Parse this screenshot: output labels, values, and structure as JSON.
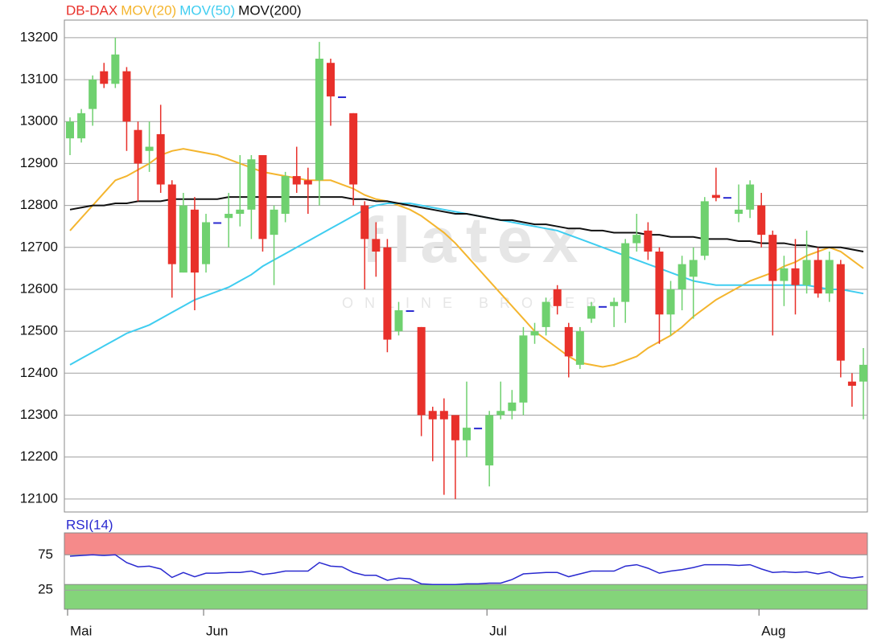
{
  "chart_data": {
    "type": "candlestick",
    "title": "DB-DAX",
    "title_color": "#e8302a",
    "watermark": "flatex",
    "watermark_sub": "ONLINE BROKER",
    "categories": [
      "Mai",
      null,
      null,
      null,
      null,
      null,
      null,
      null,
      null,
      null,
      null,
      null,
      "Jun",
      null,
      null,
      null,
      null,
      null,
      null,
      null,
      null,
      null,
      null,
      null,
      null,
      null,
      null,
      null,
      null,
      null,
      null,
      null,
      null,
      null,
      null,
      null,
      null,
      "Jul",
      null,
      null,
      null,
      null,
      null,
      null,
      null,
      null,
      null,
      null,
      null,
      null,
      null,
      null,
      null,
      null,
      null,
      null,
      null,
      null,
      null,
      null,
      null,
      "Aug",
      null,
      null,
      null,
      null,
      null,
      null,
      null,
      null,
      null
    ],
    "open": [
      12960,
      12960,
      13030,
      13120,
      13090,
      13120,
      12980,
      12930,
      12970,
      12850,
      12640,
      12790,
      12660,
      12760,
      12770,
      12780,
      12790,
      12920,
      12730,
      12780,
      12870,
      12860,
      12860,
      13140,
      13060,
      13020,
      12800,
      12720,
      12700,
      12500,
      12550,
      12510,
      12310,
      12310,
      12300,
      12240,
      12270,
      12180,
      12300,
      12310,
      12330,
      12490,
      12510,
      12600,
      12510,
      12420,
      12530,
      12560,
      12560,
      12570,
      12710,
      12740,
      12690,
      12540,
      12600,
      12630,
      12680,
      12825,
      12820,
      12780,
      12790,
      12800,
      12730,
      12620,
      12650,
      12610,
      12670,
      12590,
      12660,
      12380,
      12380
    ],
    "high": [
      13010,
      13030,
      13110,
      13140,
      13200,
      13130,
      13000,
      13000,
      13040,
      12860,
      12830,
      12820,
      12780,
      12760,
      12830,
      12920,
      12920,
      12920,
      12800,
      12880,
      12940,
      12890,
      13190,
      13150,
      13060,
      13020,
      12810,
      12760,
      12720,
      12570,
      12550,
      12510,
      12320,
      12340,
      12300,
      12380,
      12270,
      12310,
      12380,
      12360,
      12510,
      12520,
      12580,
      12610,
      12520,
      12510,
      12570,
      12560,
      12580,
      12720,
      12780,
      12760,
      12700,
      12620,
      12680,
      12700,
      12820,
      12890,
      12820,
      12850,
      12860,
      12830,
      12740,
      12680,
      12720,
      12740,
      12700,
      12690,
      12670,
      12400,
      12460
    ],
    "low": [
      12920,
      12950,
      12990,
      13080,
      13080,
      12930,
      12810,
      12880,
      12830,
      12580,
      12640,
      12550,
      12640,
      12760,
      12700,
      12750,
      12720,
      12690,
      12610,
      12760,
      12830,
      12780,
      12800,
      12990,
      13060,
      12800,
      12600,
      12630,
      12450,
      12490,
      12550,
      12250,
      12190,
      12110,
      12100,
      12200,
      12270,
      12130,
      12290,
      12290,
      12300,
      12470,
      12490,
      12540,
      12390,
      12410,
      12520,
      12560,
      12510,
      12520,
      12690,
      12670,
      12470,
      12490,
      12550,
      12530,
      12670,
      12810,
      12820,
      12760,
      12770,
      12700,
      12490,
      12560,
      12540,
      12590,
      12580,
      12570,
      12390,
      12320,
      12290
    ],
    "close": [
      13000,
      13020,
      13100,
      13090,
      13160,
      13000,
      12900,
      12940,
      12850,
      12660,
      12800,
      12640,
      12760,
      12760,
      12780,
      12790,
      12910,
      12720,
      12790,
      12870,
      12850,
      12850,
      13150,
      13060,
      13060,
      12850,
      12720,
      12690,
      12480,
      12550,
      12550,
      12300,
      12290,
      12290,
      12240,
      12270,
      12270,
      12300,
      12310,
      12330,
      12490,
      12500,
      12570,
      12560,
      12440,
      12500,
      12560,
      12560,
      12570,
      12710,
      12730,
      12690,
      12540,
      12600,
      12660,
      12670,
      12810,
      12818,
      12820,
      12790,
      12850,
      12730,
      12620,
      12650,
      12610,
      12670,
      12590,
      12670,
      12430,
      12370,
      12420
    ],
    "up_color": "#6fd16f",
    "down_color": "#e8302a",
    "doji_color": "#2a2ad0",
    "series": [
      {
        "name": "MOV(20)",
        "color": "#f4b52e",
        "values": [
          12740,
          12770,
          12800,
          12830,
          12860,
          12870,
          12885,
          12900,
          12920,
          12930,
          12935,
          12930,
          12925,
          12920,
          12910,
          12900,
          12890,
          12880,
          12875,
          12870,
          12865,
          12860,
          12860,
          12860,
          12850,
          12840,
          12825,
          12815,
          12810,
          12800,
          12790,
          12775,
          12755,
          12735,
          12710,
          12680,
          12650,
          12620,
          12590,
          12560,
          12530,
          12500,
          12480,
          12460,
          12440,
          12425,
          12420,
          12415,
          12420,
          12430,
          12440,
          12460,
          12475,
          12490,
          12510,
          12535,
          12555,
          12575,
          12590,
          12605,
          12620,
          12630,
          12640,
          12655,
          12665,
          12680,
          12690,
          12700,
          12690,
          12670,
          12650
        ]
      },
      {
        "name": "MOV(50)",
        "color": "#3fcdf0",
        "values": [
          12420,
          12435,
          12450,
          12465,
          12480,
          12495,
          12505,
          12515,
          12530,
          12545,
          12560,
          12575,
          12585,
          12595,
          12605,
          12620,
          12635,
          12655,
          12670,
          12685,
          12700,
          12715,
          12730,
          12745,
          12760,
          12775,
          12790,
          12800,
          12805,
          12805,
          12805,
          12800,
          12795,
          12790,
          12785,
          12780,
          12775,
          12770,
          12765,
          12760,
          12755,
          12750,
          12745,
          12740,
          12730,
          12720,
          12710,
          12700,
          12690,
          12680,
          12670,
          12660,
          12650,
          12640,
          12630,
          12620,
          12615,
          12610,
          12610,
          12610,
          12610,
          12610,
          12610,
          12610,
          12610,
          12610,
          12605,
          12600,
          12600,
          12595,
          12590
        ]
      },
      {
        "name": "MOV(200)",
        "color": "#111111",
        "values": [
          12790,
          12795,
          12800,
          12800,
          12805,
          12805,
          12810,
          12810,
          12810,
          12815,
          12815,
          12815,
          12815,
          12815,
          12820,
          12820,
          12820,
          12820,
          12820,
          12820,
          12820,
          12820,
          12820,
          12820,
          12820,
          12815,
          12815,
          12810,
          12810,
          12805,
          12800,
          12795,
          12790,
          12785,
          12780,
          12780,
          12775,
          12770,
          12765,
          12765,
          12760,
          12755,
          12755,
          12750,
          12745,
          12745,
          12740,
          12740,
          12735,
          12735,
          12735,
          12730,
          12730,
          12725,
          12725,
          12725,
          12720,
          12720,
          12720,
          12715,
          12715,
          12710,
          12710,
          12710,
          12705,
          12705,
          12700,
          12700,
          12700,
          12695,
          12690
        ]
      }
    ],
    "ylim": [
      12069,
      13242
    ],
    "yticks": [
      12100,
      12200,
      12300,
      12400,
      12500,
      12600,
      12700,
      12800,
      12900,
      13000,
      13100,
      13200
    ],
    "grid": true,
    "rsi": {
      "name": "RSI(14)",
      "color": "#2a2ad0",
      "values": [
        73,
        74,
        75,
        74,
        75,
        64,
        58,
        59,
        55,
        43,
        50,
        44,
        49,
        49,
        50,
        50,
        52,
        47,
        49,
        52,
        52,
        52,
        64,
        59,
        58,
        50,
        46,
        46,
        39,
        42,
        41,
        34,
        33,
        33,
        33,
        34,
        34,
        35,
        35,
        40,
        48,
        49,
        50,
        50,
        44,
        48,
        52,
        52,
        52,
        59,
        61,
        56,
        49,
        52,
        54,
        57,
        61,
        61,
        61,
        60,
        61,
        55,
        50,
        51,
        50,
        51,
        48,
        51,
        44,
        42,
        44
      ],
      "ylim": [
        -2,
        106
      ],
      "yticks": [
        25,
        75
      ],
      "upper_zone": 75,
      "upper_color": "#f58a8a",
      "lower_zone": 33,
      "lower_color": "#84d47a"
    }
  }
}
